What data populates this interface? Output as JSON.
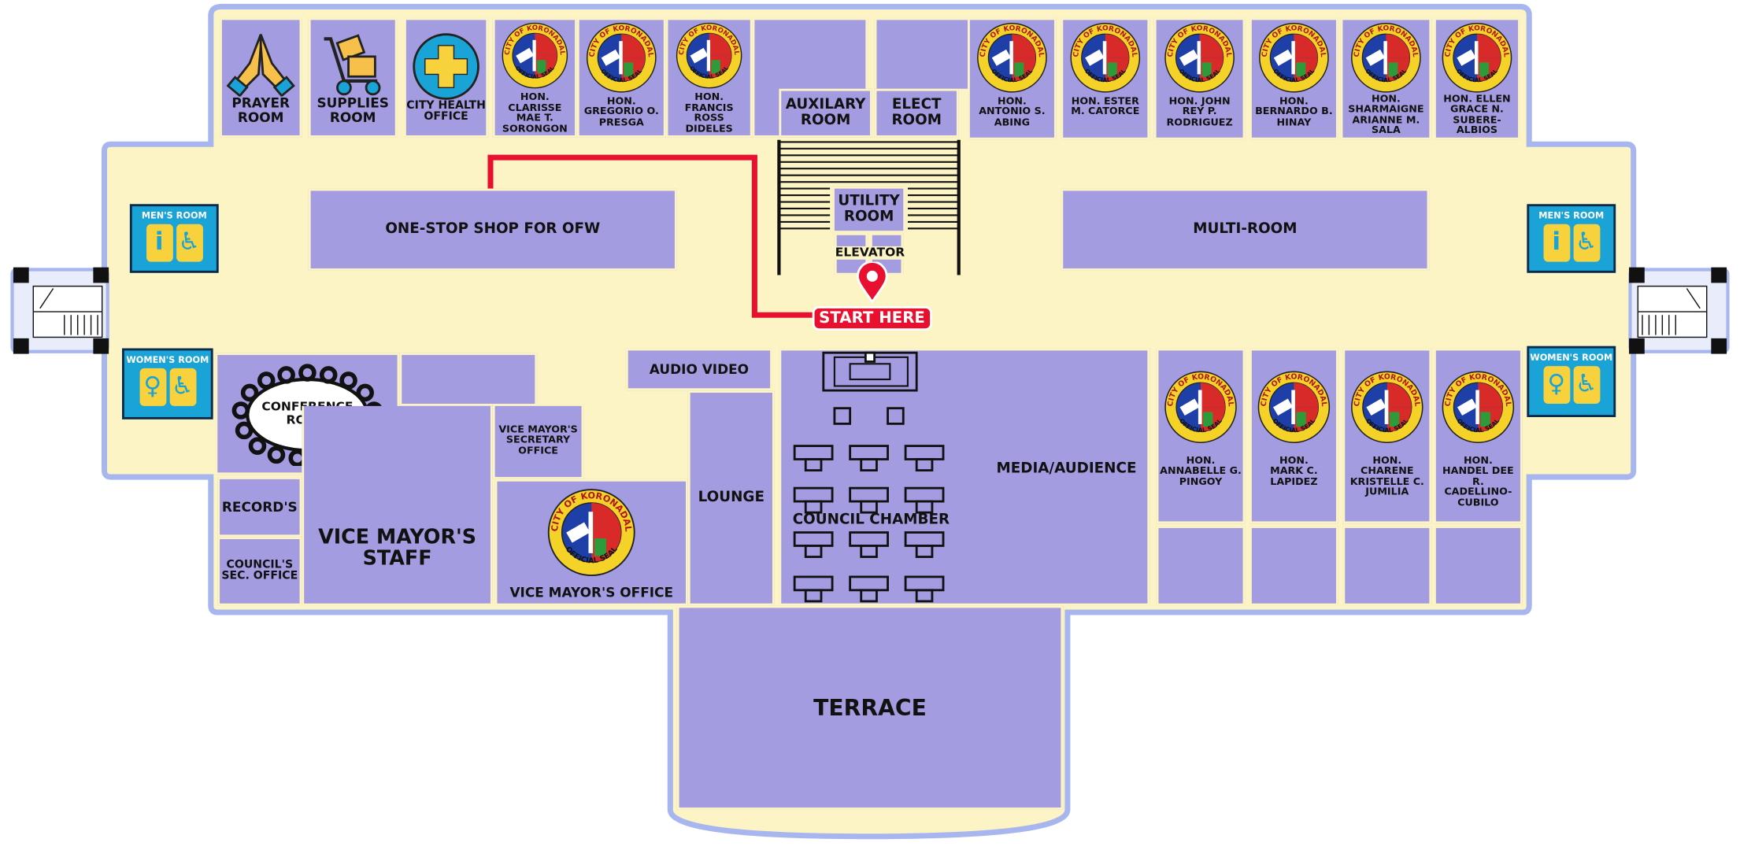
{
  "rooms": {
    "prayer": "PRAYER ROOM",
    "supplies": "SUPPLIES ROOM",
    "health": "CITY HEALTH OFFICE",
    "auxilary": "AUXILARY ROOM",
    "elect": "ELECT ROOM",
    "utility": "UTILITY ROOM",
    "elevator": "ELEVATOR",
    "ofw": "ONE-STOP SHOP FOR OFW",
    "multi": "MULTI-ROOM",
    "mens": "MEN'S ROOM",
    "womens": "WOMEN'S ROOM",
    "conference": "CONFERENCE ROOM",
    "records": "RECORD'S",
    "council_sec": "COUNCIL'S SEC. OFFICE",
    "vm_staff": "VICE MAYOR'S STAFF",
    "vm_secretary": "VICE MAYOR'S SECRETARY OFFICE",
    "vm_office": "VICE MAYOR'S OFFICE",
    "audio_video": "AUDIO VIDEO",
    "lounge": "LOUNGE",
    "media": "MEDIA/AUDIENCE",
    "council_chamber": "COUNCIL CHAMBER",
    "terrace": "TERRACE"
  },
  "start_label": "START HERE",
  "councilors_top": [
    "HON. CLARISSE MAE T. SORONGON",
    "HON. GREGORIO O. PRESGA",
    "HON. FRANCIS ROSS DIDELES",
    "HON. ANTONIO S. ABING",
    "HON. ESTER M. CATORCE",
    "HON. JOHN REY P. RODRIGUEZ",
    "HON. BERNARDO B. HINAY",
    "HON. SHARMAIGNE ARIANNE M. SALA",
    "HON. ELLEN GRACE N. SUBERE-ALBIOS"
  ],
  "councilors_bottom": [
    "HON. ANNABELLE G. PINGOY",
    "HON. MARK C. LAPIDEZ",
    "HON. CHARENE KRISTELLE C. JUMILIA",
    "HON. HANDEL DEE R. CADELLINO-CUBILO"
  ],
  "seal": {
    "top": "CITY OF KORONADAL",
    "bottom": "OFFICIAL SEAL"
  },
  "colors": {
    "floor": "#fdf4c6",
    "border": "#a8b6f0",
    "room": "#a39ce0",
    "route": "#e8102e",
    "restroom": "#1aa3d6"
  },
  "icons": {
    "prayer": "praying-hands-icon",
    "supplies": "hand-truck-icon",
    "health": "medical-cross-icon",
    "restroom": "person-wheelchair-icon",
    "pin": "location-pin-icon"
  }
}
